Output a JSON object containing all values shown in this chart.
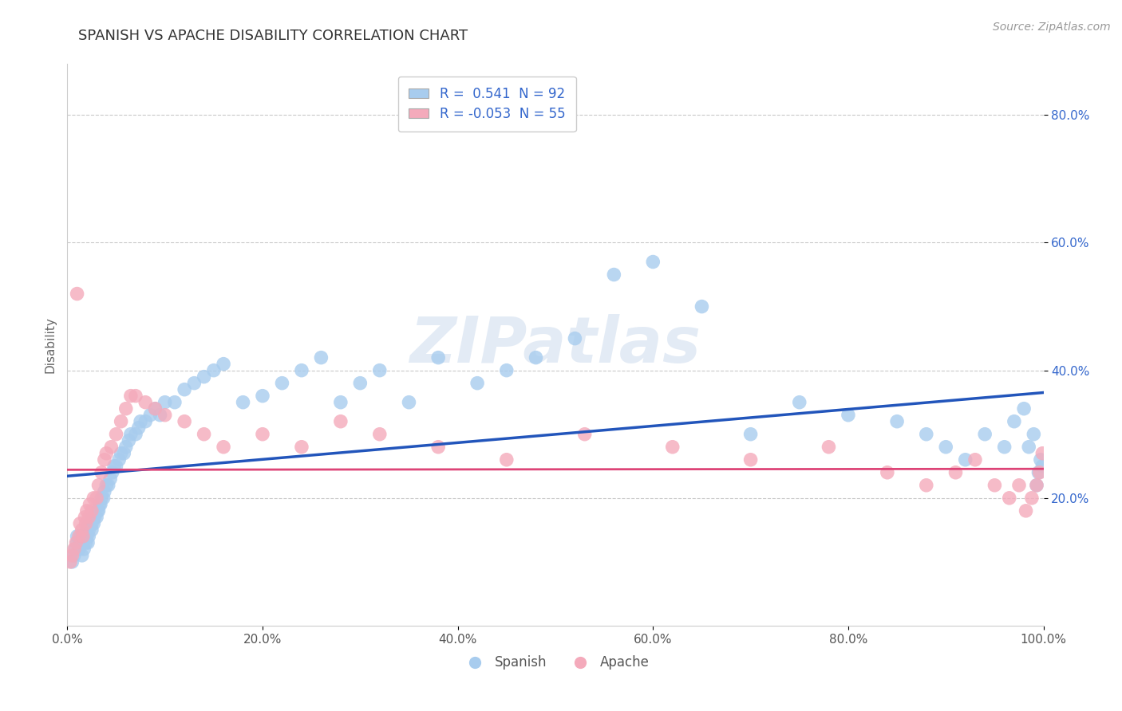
{
  "title": "SPANISH VS APACHE DISABILITY CORRELATION CHART",
  "source": "Source: ZipAtlas.com",
  "ylabel": "Disability",
  "xlim": [
    0.0,
    1.0
  ],
  "ylim": [
    0.0,
    0.88
  ],
  "xtick_labels": [
    "0.0%",
    "20.0%",
    "40.0%",
    "60.0%",
    "80.0%",
    "100.0%"
  ],
  "xtick_vals": [
    0.0,
    0.2,
    0.4,
    0.6,
    0.8,
    1.0
  ],
  "ytick_labels": [
    "20.0%",
    "40.0%",
    "60.0%",
    "80.0%"
  ],
  "ytick_vals": [
    0.2,
    0.4,
    0.6,
    0.8
  ],
  "blue_color": "#A8CCEE",
  "pink_color": "#F4AABB",
  "blue_line_color": "#2255BB",
  "pink_line_color": "#DD4477",
  "title_color": "#333333",
  "legend_r_color": "#3366CC",
  "watermark_color": "#C8D8EC",
  "blue_r": 0.541,
  "pink_r": -0.053,
  "blue_n": 92,
  "pink_n": 55,
  "spanish_x": [
    0.005,
    0.007,
    0.008,
    0.01,
    0.01,
    0.012,
    0.013,
    0.014,
    0.015,
    0.016,
    0.017,
    0.018,
    0.019,
    0.02,
    0.02,
    0.021,
    0.022,
    0.022,
    0.023,
    0.025,
    0.025,
    0.026,
    0.027,
    0.028,
    0.03,
    0.031,
    0.032,
    0.033,
    0.034,
    0.035,
    0.037,
    0.038,
    0.04,
    0.042,
    0.044,
    0.046,
    0.048,
    0.05,
    0.053,
    0.055,
    0.058,
    0.06,
    0.063,
    0.065,
    0.07,
    0.073,
    0.075,
    0.08,
    0.085,
    0.09,
    0.095,
    0.1,
    0.11,
    0.12,
    0.13,
    0.14,
    0.15,
    0.16,
    0.18,
    0.2,
    0.22,
    0.24,
    0.26,
    0.28,
    0.3,
    0.32,
    0.35,
    0.38,
    0.42,
    0.45,
    0.48,
    0.52,
    0.56,
    0.6,
    0.65,
    0.7,
    0.75,
    0.8,
    0.85,
    0.88,
    0.9,
    0.92,
    0.94,
    0.96,
    0.97,
    0.98,
    0.985,
    0.99,
    0.993,
    0.995,
    0.997,
    0.999
  ],
  "spanish_y": [
    0.1,
    0.11,
    0.12,
    0.13,
    0.14,
    0.12,
    0.13,
    0.14,
    0.11,
    0.13,
    0.12,
    0.14,
    0.13,
    0.14,
    0.15,
    0.13,
    0.15,
    0.14,
    0.16,
    0.15,
    0.16,
    0.17,
    0.16,
    0.17,
    0.17,
    0.18,
    0.18,
    0.19,
    0.19,
    0.2,
    0.2,
    0.21,
    0.22,
    0.22,
    0.23,
    0.24,
    0.25,
    0.25,
    0.26,
    0.27,
    0.27,
    0.28,
    0.29,
    0.3,
    0.3,
    0.31,
    0.32,
    0.32,
    0.33,
    0.34,
    0.33,
    0.35,
    0.35,
    0.37,
    0.38,
    0.39,
    0.4,
    0.41,
    0.35,
    0.36,
    0.38,
    0.4,
    0.42,
    0.35,
    0.38,
    0.4,
    0.35,
    0.42,
    0.38,
    0.4,
    0.42,
    0.45,
    0.55,
    0.57,
    0.5,
    0.3,
    0.35,
    0.33,
    0.32,
    0.3,
    0.28,
    0.26,
    0.3,
    0.28,
    0.32,
    0.34,
    0.28,
    0.3,
    0.22,
    0.24,
    0.26,
    0.25
  ],
  "apache_x": [
    0.003,
    0.005,
    0.007,
    0.009,
    0.01,
    0.012,
    0.013,
    0.015,
    0.016,
    0.018,
    0.019,
    0.02,
    0.022,
    0.023,
    0.025,
    0.027,
    0.03,
    0.032,
    0.035,
    0.038,
    0.04,
    0.045,
    0.05,
    0.055,
    0.06,
    0.065,
    0.07,
    0.08,
    0.09,
    0.1,
    0.12,
    0.14,
    0.16,
    0.2,
    0.24,
    0.28,
    0.32,
    0.38,
    0.45,
    0.53,
    0.62,
    0.7,
    0.78,
    0.84,
    0.88,
    0.91,
    0.93,
    0.95,
    0.965,
    0.975,
    0.982,
    0.988,
    0.993,
    0.996,
    0.999
  ],
  "apache_y": [
    0.1,
    0.11,
    0.12,
    0.13,
    0.52,
    0.14,
    0.16,
    0.15,
    0.14,
    0.17,
    0.16,
    0.18,
    0.17,
    0.19,
    0.18,
    0.2,
    0.2,
    0.22,
    0.24,
    0.26,
    0.27,
    0.28,
    0.3,
    0.32,
    0.34,
    0.36,
    0.36,
    0.35,
    0.34,
    0.33,
    0.32,
    0.3,
    0.28,
    0.3,
    0.28,
    0.32,
    0.3,
    0.28,
    0.26,
    0.3,
    0.28,
    0.26,
    0.28,
    0.24,
    0.22,
    0.24,
    0.26,
    0.22,
    0.2,
    0.22,
    0.18,
    0.2,
    0.22,
    0.24,
    0.27
  ]
}
